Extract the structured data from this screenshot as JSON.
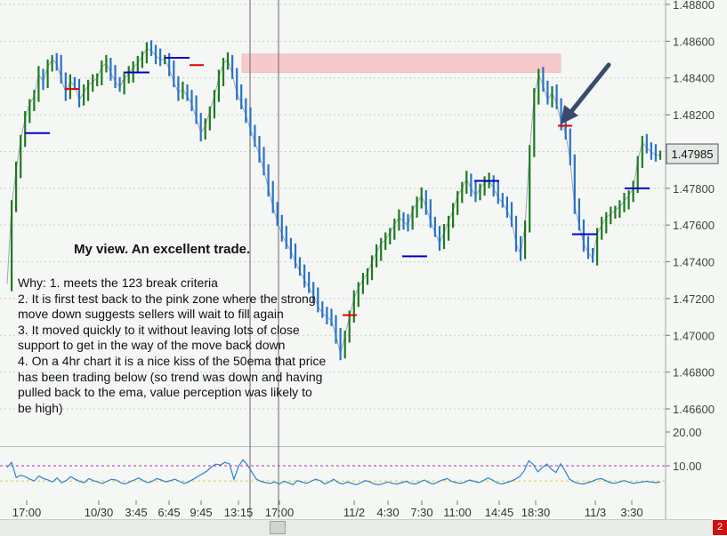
{
  "chart_data": {
    "type": "candlestick",
    "symbol_last_price": "1.47985",
    "price_axis_labels": [
      "1.48800",
      "1.48600",
      "1.48400",
      "1.48200",
      "1.48000",
      "1.47800",
      "1.47600",
      "1.47400",
      "1.47200",
      "1.47000",
      "1.46800",
      "1.46600"
    ],
    "price_range": [
      1.4645,
      1.4888
    ],
    "indicator_axis_labels": [
      "20.00",
      "10.00"
    ],
    "indicator_range": [
      0,
      25
    ],
    "time_labels": [
      "17:00",
      "10/30",
      "3:45",
      "6:45",
      "9:45",
      "13:15",
      "17:00",
      "11/2",
      "4:30",
      "7:30",
      "11:00",
      "14:45",
      "18:30",
      "11/3",
      "3:30"
    ],
    "zone": {
      "top": 1.4853,
      "bottom": 1.4843
    },
    "close_path": [
      1.4728,
      1.477,
      1.479,
      1.4806,
      1.4818,
      1.4826,
      1.483,
      1.4842,
      1.4838,
      1.4846,
      1.485,
      1.4848,
      1.484,
      1.4832,
      1.4838,
      1.4836,
      1.4828,
      1.4832,
      1.4836,
      1.4838,
      1.484,
      1.4846,
      1.4848,
      1.4843,
      1.4838,
      1.4835,
      1.484,
      1.4842,
      1.4846,
      1.4848,
      1.4852,
      1.4856,
      1.4855,
      1.4852,
      1.485,
      1.485,
      1.4845,
      1.4838,
      1.4832,
      1.4834,
      1.483,
      1.4826,
      1.4818,
      1.481,
      1.4814,
      1.4822,
      1.483,
      1.484,
      1.4848,
      1.485,
      1.4842,
      1.4832,
      1.4826,
      1.482,
      1.4812,
      1.4805,
      1.4798,
      1.479,
      1.478,
      1.477,
      1.4762,
      1.4755,
      1.475,
      1.4746,
      1.474,
      1.4735,
      1.473,
      1.4726,
      1.4722,
      1.4716,
      1.4712,
      1.471,
      1.4708,
      1.47,
      1.469,
      1.47,
      1.471,
      1.472,
      1.4726,
      1.473,
      1.4734,
      1.474,
      1.4745,
      1.475,
      1.4752,
      1.4756,
      1.476,
      1.4764,
      1.4762,
      1.476,
      1.4768,
      1.4772,
      1.4776,
      1.477,
      1.4762,
      1.4756,
      1.475,
      1.4756,
      1.4762,
      1.4768,
      1.4776,
      1.478,
      1.4785,
      1.478,
      1.4776,
      1.478,
      1.4783,
      1.4784,
      1.478,
      1.4775,
      1.4772,
      1.4768,
      1.4762,
      1.475,
      1.4744,
      1.476,
      1.48,
      1.483,
      1.4842,
      1.4836,
      1.4828,
      1.4832,
      1.4826,
      1.4816,
      1.481,
      1.4795,
      1.477,
      1.476,
      1.475,
      1.4745,
      1.4742,
      1.4755,
      1.476,
      1.4764,
      1.4766,
      1.4768,
      1.477,
      1.4773,
      1.4776,
      1.478,
      1.4795,
      1.4805,
      1.4802,
      1.48,
      1.4798,
      1.4798
    ],
    "indicator_path": [
      9.5,
      11.0,
      6.5,
      7.2,
      6.8,
      6.0,
      5.5,
      7.0,
      6.2,
      5.8,
      5.2,
      6.4,
      5.0,
      5.6,
      6.8,
      6.0,
      5.4,
      5.0,
      6.2,
      5.6,
      5.2,
      4.8,
      5.4,
      6.0,
      5.8,
      5.0,
      4.6,
      5.2,
      5.8,
      6.4,
      5.6,
      5.0,
      5.4,
      6.2,
      5.8,
      5.2,
      5.6,
      6.0,
      5.4,
      4.8,
      5.2,
      6.0,
      6.8,
      7.6,
      8.4,
      9.6,
      10.5,
      10.2,
      11.0,
      10.6,
      6.0,
      9.8,
      11.8,
      10.2,
      8.0,
      6.0,
      5.4,
      5.0,
      4.8,
      5.2,
      4.6,
      5.4,
      5.0,
      4.4,
      5.6,
      5.2,
      4.8,
      5.4,
      6.0,
      5.6,
      4.6,
      5.2,
      6.0,
      5.0,
      4.6,
      5.2,
      4.8,
      4.4,
      5.0,
      5.6,
      5.2,
      4.6,
      4.4,
      4.8,
      5.2,
      4.8,
      4.6,
      5.0,
      5.4,
      4.8,
      4.6,
      5.2,
      5.8,
      5.0,
      4.6,
      5.2,
      5.8,
      6.2,
      5.4,
      5.0,
      4.8,
      5.2,
      5.8,
      5.4,
      5.0,
      5.6,
      6.4,
      5.8,
      5.0,
      4.6,
      5.0,
      5.4,
      6.0,
      6.8,
      8.5,
      11.5,
      10.4,
      8.2,
      9.5,
      10.5,
      9.0,
      8.0,
      10.6,
      8.5,
      6.0,
      5.2,
      4.8,
      4.6,
      5.0,
      5.4,
      6.0,
      6.2,
      5.6,
      5.0,
      4.8,
      5.2,
      5.6,
      5.2,
      4.8,
      5.0,
      5.2,
      5.4,
      5.2,
      5.0,
      5.2
    ],
    "indicator_levels": [
      10.0,
      5.5
    ]
  },
  "annotation": {
    "heading": "My view.  An excellent trade.",
    "lines": [
      "Why:  1. meets the 123 break criteria",
      "2. It is first test back to the pink zone where the strong move down suggests sellers will wait to fill again",
      "3.  It moved quickly to it without leaving lots of close support to get in the way of the move back down",
      "4. On a 4hr chart it is a nice kiss of the 50ema that price has been trading below (so trend was down and having pulled back to the ema, value perception was likely to be high)"
    ]
  },
  "badges": {
    "top": "",
    "bottom": "2"
  },
  "colors": {
    "up": "#1f7a1f",
    "down": "#2a72c8",
    "pivot_blue": "#0000cc",
    "pivot_red": "#e00000",
    "zone": "#f6caca",
    "last_price_bg": "#e4e8e4"
  }
}
